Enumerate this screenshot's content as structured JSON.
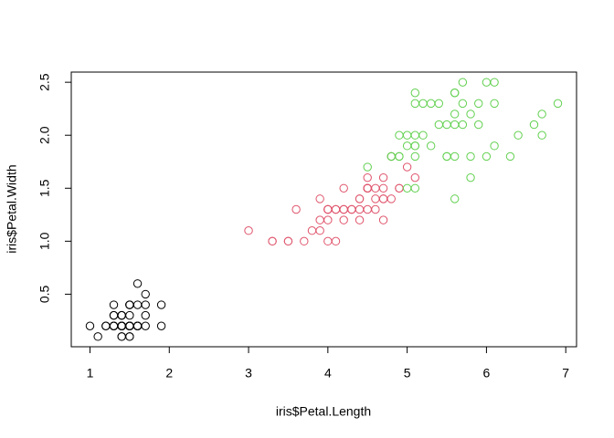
{
  "chart_data": {
    "type": "scatter",
    "x_label": "iris$Petal.Length",
    "y_label": "iris$Petal.Width",
    "xlim": [
      0.764,
      7.136
    ],
    "ylim": [
      0.004,
      2.596
    ],
    "xticks": [
      1,
      2,
      3,
      4,
      5,
      6,
      7
    ],
    "yticks": [
      0.5,
      {
        "value": 1,
        "label": "1.0"
      },
      1.5,
      {
        "value": 2,
        "label": "2.0"
      },
      2.5
    ],
    "series": [
      {
        "color": "#000000",
        "x": [
          1.4,
          1.4,
          1.3,
          1.5,
          1.4,
          1.7,
          1.4,
          1.5,
          1.4,
          1.5,
          1.5,
          1.6,
          1.4,
          1.1,
          1.2,
          1.5,
          1.3,
          1.4,
          1.7,
          1.5,
          1.7,
          1.5,
          1.0,
          1.7,
          1.9,
          1.6,
          1.6,
          1.5,
          1.4,
          1.6,
          1.6,
          1.5,
          1.5,
          1.4,
          1.5,
          1.2,
          1.3,
          1.4,
          1.3,
          1.5,
          1.3,
          1.3,
          1.3,
          1.6,
          1.9,
          1.4,
          1.6,
          1.4,
          1.5,
          1.4
        ],
        "y": [
          0.2,
          0.2,
          0.2,
          0.2,
          0.2,
          0.4,
          0.3,
          0.2,
          0.2,
          0.1,
          0.2,
          0.2,
          0.1,
          0.1,
          0.2,
          0.4,
          0.4,
          0.3,
          0.3,
          0.3,
          0.2,
          0.4,
          0.2,
          0.5,
          0.2,
          0.2,
          0.4,
          0.2,
          0.2,
          0.2,
          0.2,
          0.4,
          0.1,
          0.2,
          0.2,
          0.2,
          0.2,
          0.1,
          0.2,
          0.2,
          0.3,
          0.3,
          0.2,
          0.6,
          0.4,
          0.3,
          0.2,
          0.2,
          0.2,
          0.2
        ]
      },
      {
        "color": "#DF536B",
        "x": [
          4.7,
          4.5,
          4.9,
          4.0,
          4.6,
          4.5,
          4.7,
          3.3,
          4.6,
          3.9,
          3.5,
          4.2,
          4.0,
          4.7,
          3.6,
          4.4,
          4.5,
          4.1,
          4.5,
          3.9,
          4.8,
          4.0,
          4.9,
          4.7,
          4.3,
          4.4,
          4.8,
          5.0,
          4.5,
          3.5,
          3.8,
          3.7,
          3.9,
          5.1,
          4.5,
          4.5,
          4.7,
          4.4,
          4.1,
          4.0,
          4.4,
          4.6,
          4.0,
          3.3,
          4.2,
          4.2,
          4.2,
          4.3,
          3.0,
          4.1
        ],
        "y": [
          1.4,
          1.5,
          1.5,
          1.3,
          1.5,
          1.3,
          1.6,
          1.0,
          1.3,
          1.4,
          1.0,
          1.5,
          1.0,
          1.4,
          1.3,
          1.4,
          1.5,
          1.0,
          1.5,
          1.1,
          1.8,
          1.3,
          1.5,
          1.2,
          1.3,
          1.4,
          1.4,
          1.7,
          1.5,
          1.0,
          1.1,
          1.0,
          1.2,
          1.6,
          1.5,
          1.6,
          1.5,
          1.3,
          1.3,
          1.3,
          1.2,
          1.4,
          1.2,
          1.0,
          1.3,
          1.2,
          1.3,
          1.3,
          1.1,
          1.3
        ]
      },
      {
        "color": "#61D04F",
        "x": [
          6.0,
          5.1,
          5.9,
          5.6,
          5.8,
          6.6,
          4.5,
          6.3,
          5.8,
          6.1,
          5.1,
          5.3,
          5.5,
          5.0,
          5.1,
          5.3,
          5.5,
          6.7,
          6.9,
          5.0,
          5.7,
          4.9,
          6.7,
          4.9,
          5.7,
          6.0,
          4.8,
          4.9,
          5.6,
          5.8,
          6.1,
          6.4,
          5.6,
          5.1,
          5.6,
          6.1,
          5.6,
          5.5,
          4.8,
          5.4,
          5.6,
          5.1,
          5.1,
          5.9,
          5.7,
          5.2,
          5.0,
          5.2,
          5.4,
          5.1
        ],
        "y": [
          2.5,
          1.9,
          2.1,
          1.8,
          2.2,
          2.1,
          1.7,
          1.8,
          1.8,
          2.5,
          2.0,
          1.9,
          2.1,
          2.0,
          2.4,
          2.3,
          1.8,
          2.2,
          2.3,
          1.5,
          2.3,
          2.0,
          2.0,
          1.8,
          2.1,
          1.8,
          1.8,
          1.8,
          2.1,
          1.6,
          1.9,
          2.0,
          2.2,
          1.5,
          1.4,
          2.3,
          2.4,
          1.8,
          1.8,
          2.1,
          2.4,
          2.3,
          1.9,
          2.3,
          2.5,
          2.3,
          1.9,
          2.0,
          2.3,
          1.8
        ]
      }
    ]
  }
}
